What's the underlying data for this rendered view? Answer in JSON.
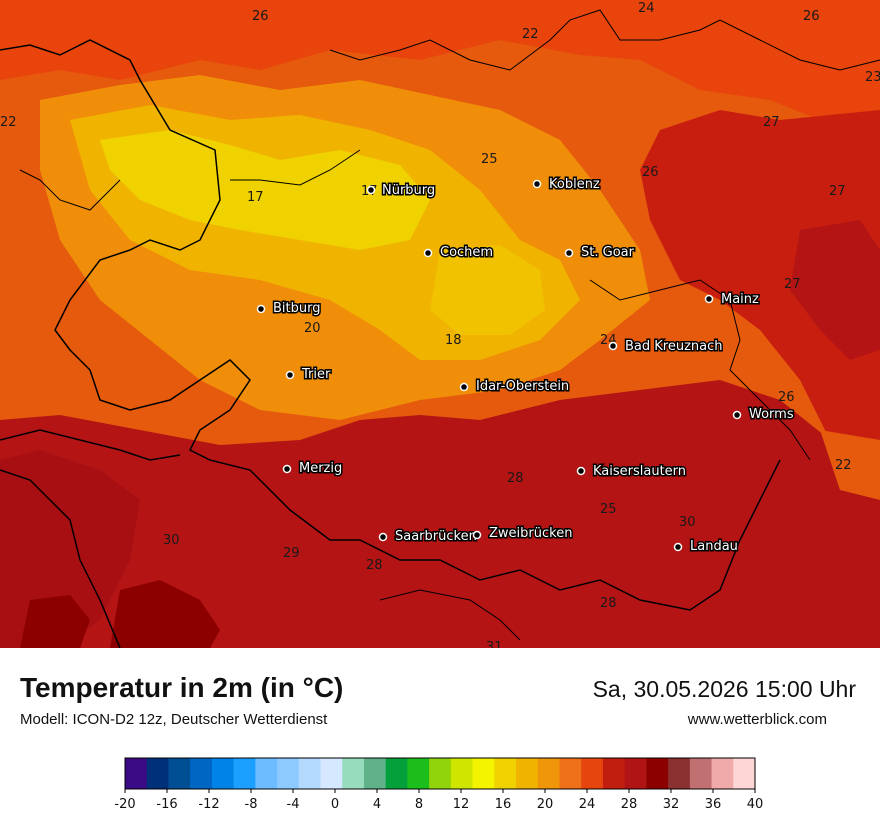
{
  "header": {
    "title": "Temperatur in 2m (in °C)",
    "model": "Modell: ICON-D2 12z, Deutscher Wetterdienst",
    "datetime": "Sa, 30.05.2026 15:00 Uhr",
    "website": "www.wetterblick.com"
  },
  "cities": [
    {
      "name": "Nürburg"
    },
    {
      "name": "Koblenz"
    },
    {
      "name": "Cochem"
    },
    {
      "name": "St. Goar"
    },
    {
      "name": "Mainz"
    },
    {
      "name": "Bitburg"
    },
    {
      "name": "Bad Kreuznach"
    },
    {
      "name": "Trier"
    },
    {
      "name": "Idar-Oberstein"
    },
    {
      "name": "Worms"
    },
    {
      "name": "Merzig"
    },
    {
      "name": "Kaiserslautern"
    },
    {
      "name": "Saarbrücken"
    },
    {
      "name": "Zweibrücken"
    },
    {
      "name": "Landau"
    }
  ],
  "temperature_labels": [
    "26",
    "24",
    "26",
    "22",
    "23",
    "22",
    "27",
    "25",
    "26",
    "27",
    "17",
    "17",
    "27",
    "20",
    "24",
    "18",
    "26",
    "22",
    "28",
    "25",
    "30",
    "30",
    "29",
    "28",
    "28",
    "31"
  ],
  "colorbar": {
    "ticks": [
      "-20",
      "-16",
      "-12",
      "-8",
      "-4",
      "0",
      "4",
      "8",
      "12",
      "16",
      "20",
      "24",
      "28",
      "32",
      "36",
      "40"
    ],
    "colors": [
      "#3b0a85",
      "#00307a",
      "#004f94",
      "#0066c4",
      "#0083e6",
      "#1ba0ff",
      "#6cbcff",
      "#8ccaff",
      "#b4d9ff",
      "#d6e8ff",
      "#96dcbd",
      "#60b28a",
      "#04a03c",
      "#1cbe1c",
      "#92d40c",
      "#cfe600",
      "#f4f400",
      "#f0d200",
      "#f0b400",
      "#f0960a",
      "#ee7018",
      "#e6460e",
      "#c21e10",
      "#b01414",
      "#8c0000",
      "#8a3030",
      "#c07070",
      "#f0aaaa",
      "#ffd6d6"
    ]
  }
}
